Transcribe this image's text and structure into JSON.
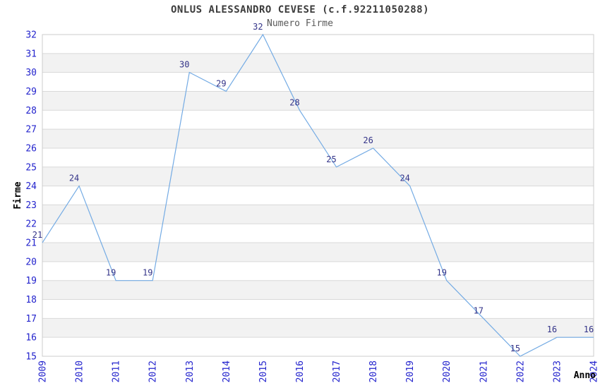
{
  "chart_data": {
    "type": "line",
    "title": "ONLUS ALESSANDRO CEVESE (c.f.92211050288)",
    "subtitle": "Numero Firme",
    "xlabel": "Anno",
    "ylabel": "Firme",
    "categories": [
      "2009",
      "2010",
      "2011",
      "2012",
      "2013",
      "2014",
      "2015",
      "2016",
      "2017",
      "2018",
      "2019",
      "2020",
      "2021",
      "2022",
      "2023",
      "2024"
    ],
    "values": [
      21,
      24,
      19,
      19,
      30,
      29,
      32,
      28,
      25,
      26,
      24,
      19,
      17,
      15,
      16,
      16
    ],
    "ylim": [
      15,
      32
    ],
    "ytick_step": 1,
    "grid": "horizontal-bands",
    "legend": "none",
    "colors": {
      "line": "#74abe4",
      "tick_label": "#2323cd",
      "data_label": "#333388",
      "title": "#3c3c3c",
      "subtitle": "#595959",
      "axis_title": "#000000",
      "band_gray": "#f2f2f2",
      "band_white": "#ffffff",
      "gridline": "#d9d9d9",
      "plot_border": "#cccccc"
    }
  }
}
